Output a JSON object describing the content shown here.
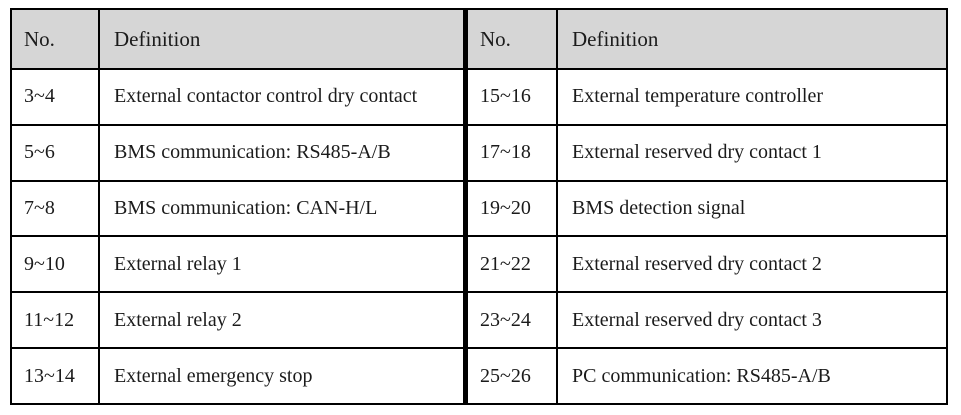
{
  "table": {
    "colors": {
      "header_bg": "#d6d6d6",
      "border": "#000000",
      "text": "#1b1b1b"
    },
    "left": {
      "header": {
        "no": "No.",
        "definition": "Definition"
      },
      "rows": [
        {
          "no": "3~4",
          "definition": "External contactor control dry contact"
        },
        {
          "no": "5~6",
          "definition": "BMS communication: RS485-A/B"
        },
        {
          "no": "7~8",
          "definition": "BMS communication: CAN-H/L"
        },
        {
          "no": "9~10",
          "definition": "External relay 1"
        },
        {
          "no": "11~12",
          "definition": "External relay 2"
        },
        {
          "no": "13~14",
          "definition": "External emergency stop"
        }
      ]
    },
    "right": {
      "header": {
        "no": "No.",
        "definition": "Definition"
      },
      "rows": [
        {
          "no": "15~16",
          "definition": "External temperature controller"
        },
        {
          "no": "17~18",
          "definition": "External reserved dry contact 1"
        },
        {
          "no": "19~20",
          "definition": "BMS detection signal"
        },
        {
          "no": "21~22",
          "definition": "External reserved dry contact 2"
        },
        {
          "no": "23~24",
          "definition": "External reserved dry contact 3"
        },
        {
          "no": "25~26",
          "definition": "PC communication: RS485-A/B"
        }
      ]
    }
  }
}
